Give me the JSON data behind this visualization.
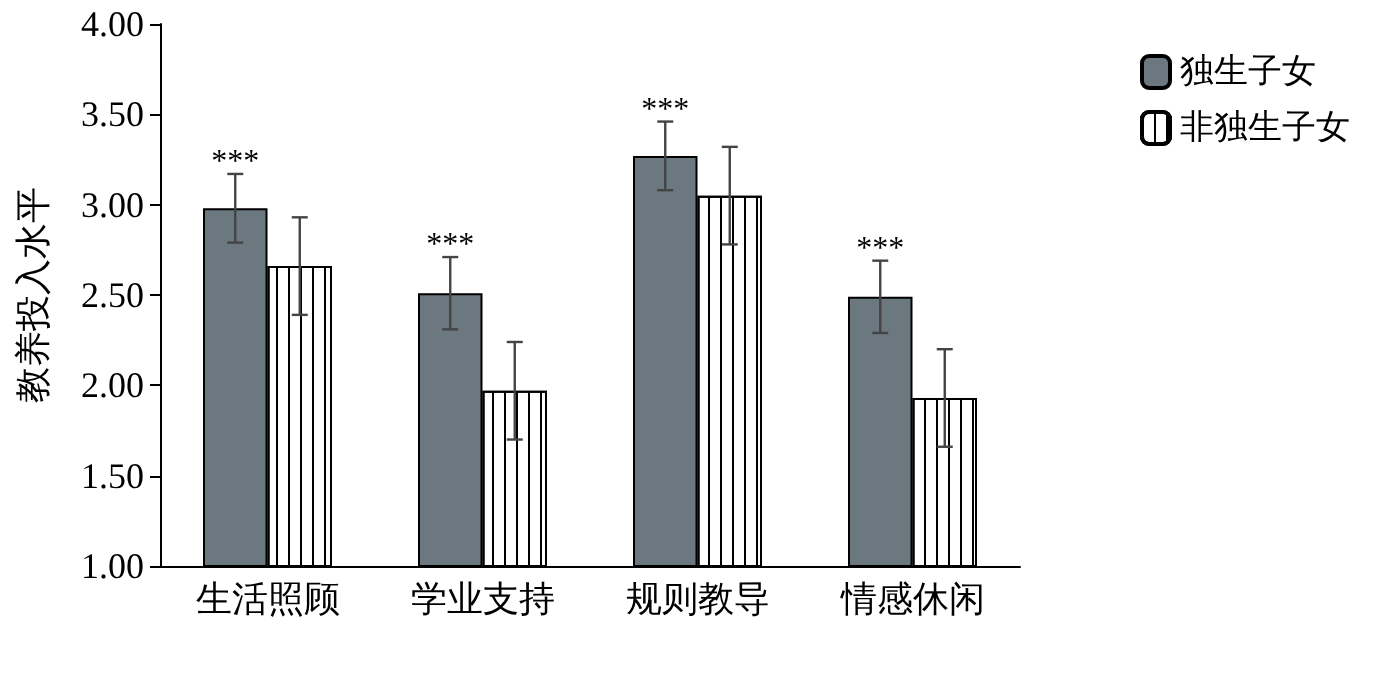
{
  "chart_data": {
    "type": "bar",
    "ylabel": "教养投入水平",
    "categories": [
      "生活照顾",
      "学业支持",
      "规则教导",
      "情感休闲"
    ],
    "series": [
      {
        "name": "独生子女",
        "color": "#6b7880",
        "values": [
          2.98,
          2.51,
          3.27,
          2.49
        ],
        "errors": [
          0.19,
          0.2,
          0.19,
          0.2
        ]
      },
      {
        "name": "非独生子女",
        "color": "#ffffff",
        "values": [
          2.66,
          1.97,
          3.05,
          1.93
        ],
        "errors": [
          0.27,
          0.27,
          0.27,
          0.27
        ]
      }
    ],
    "ylim": [
      1,
      4
    ],
    "yticks": [
      {
        "value": 1,
        "label": "1.00"
      },
      {
        "value": 1.5,
        "label": "1.50"
      },
      {
        "value": 2,
        "label": "2.00"
      },
      {
        "value": 2.5,
        "label": "2.50"
      },
      {
        "value": 3,
        "label": "3.00"
      },
      {
        "value": 3.5,
        "label": "3.50"
      },
      {
        "value": 4,
        "label": "4.00"
      }
    ],
    "annotations": [
      "***",
      "***",
      "***",
      "***"
    ],
    "legend": "top right",
    "grid": false
  }
}
